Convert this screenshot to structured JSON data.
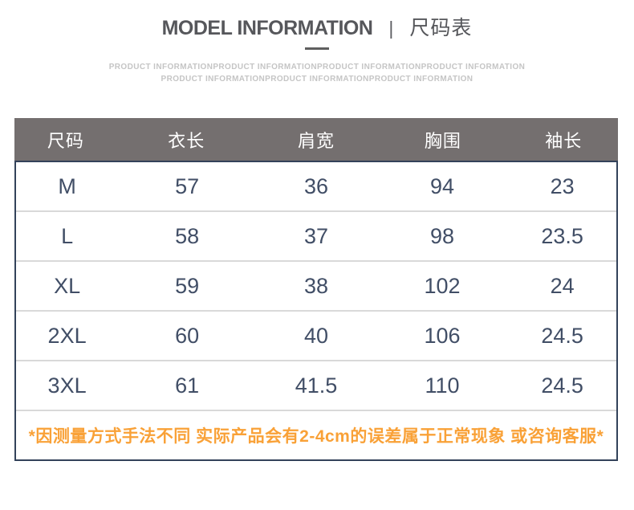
{
  "title": {
    "en": "MODEL INFORMATION",
    "divider": "|",
    "zh": "尺码表"
  },
  "watermark": {
    "line1": "PRODUCT INFORMATIONPRODUCT INFORMATIONPRODUCT INFORMATIONPRODUCT INFORMATION",
    "line2": "PRODUCT INFORMATIONPRODUCT INFORMATIONPRODUCT INFORMATION"
  },
  "size_table": {
    "headers": [
      "尺码",
      "衣长",
      "肩宽",
      "胸围",
      "袖长"
    ],
    "rows": [
      [
        "M",
        "57",
        "36",
        "94",
        "23"
      ],
      [
        "L",
        "58",
        "37",
        "98",
        "23.5"
      ],
      [
        "XL",
        "59",
        "38",
        "102",
        "24"
      ],
      [
        "2XL",
        "60",
        "40",
        "106",
        "24.5"
      ],
      [
        "3XL",
        "61",
        "41.5",
        "110",
        "24.5"
      ]
    ],
    "note": "*因测量方式手法不同 实际产品会有2-4cm的误差属于正常现象 或咨询客服*"
  },
  "chart_data": {
    "type": "table",
    "title": "MODEL INFORMATION | 尺码表",
    "columns": [
      "尺码",
      "衣长",
      "肩宽",
      "胸围",
      "袖长"
    ],
    "rows": [
      [
        "M",
        57,
        36,
        94,
        23
      ],
      [
        "L",
        58,
        37,
        98,
        23.5
      ],
      [
        "XL",
        59,
        38,
        102,
        24
      ],
      [
        "2XL",
        60,
        40,
        106,
        24.5
      ],
      [
        "3XL",
        61,
        41.5,
        110,
        24.5
      ]
    ],
    "footnote": "*因测量方式手法不同 实际产品会有2-4cm的误差属于正常现象 或咨询客服*"
  },
  "colors": {
    "header_bg": "#746f6f",
    "header_text": "#ffffff",
    "body_text": "#414e66",
    "row_divider": "#d9d9d9",
    "table_border": "#33425a",
    "note_text": "#f9a137",
    "title_text": "#56575b",
    "watermark_text": "#c5c5c5"
  }
}
